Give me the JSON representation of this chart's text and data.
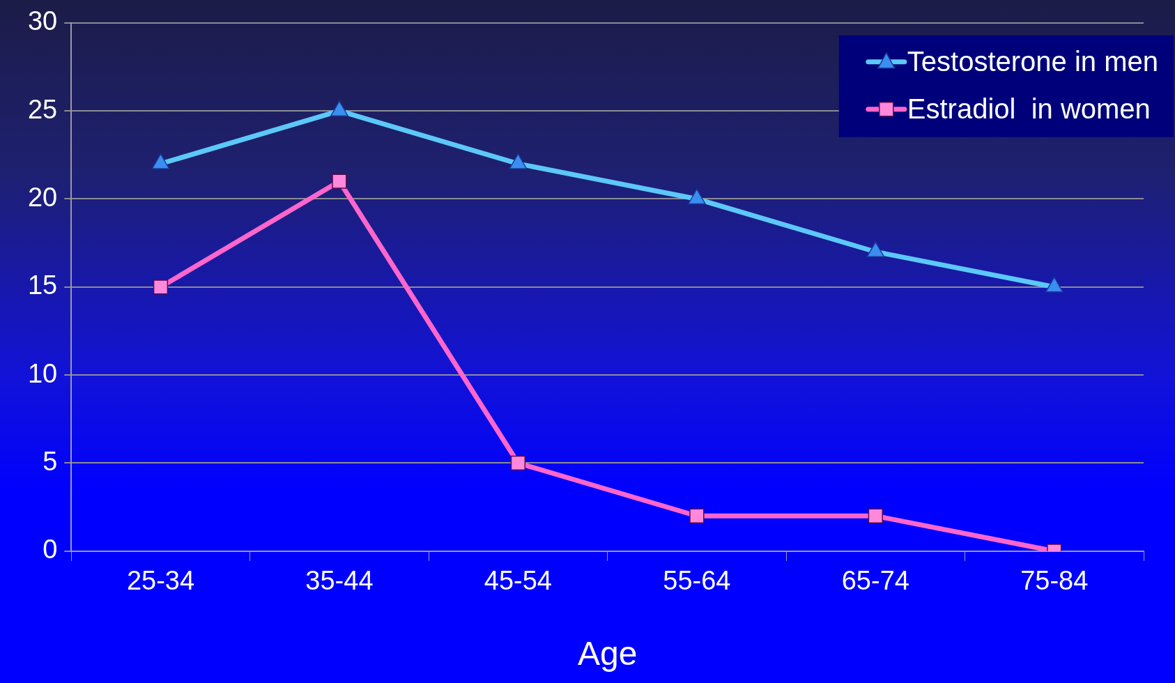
{
  "chart_data": {
    "type": "line",
    "xlabel": "Age",
    "categories": [
      "25-34",
      "35-44",
      "45-54",
      "55-64",
      "65-74",
      "75-84"
    ],
    "series": [
      {
        "name": "Testosterone in men",
        "color": "#5cc8f8",
        "marker": "triangle",
        "values": [
          22,
          25,
          22,
          20,
          17,
          15
        ]
      },
      {
        "name": "Estradiol  in women",
        "color": "#ff66cc",
        "marker": "square",
        "values": [
          15,
          21,
          5,
          2,
          2,
          0
        ]
      }
    ],
    "ylim": [
      0,
      30
    ],
    "yticks": [
      0,
      5,
      10,
      15,
      20,
      25,
      30
    ],
    "grid": "y",
    "legend": "top right",
    "line_style": "solid"
  }
}
